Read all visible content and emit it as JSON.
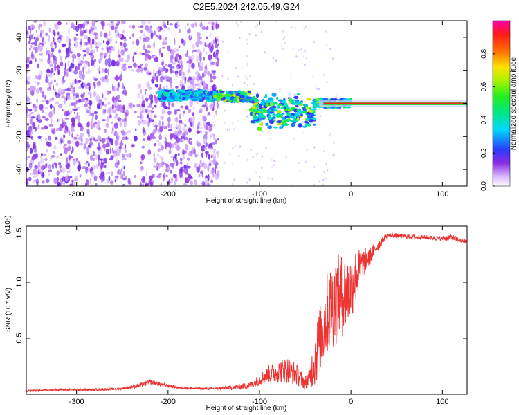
{
  "figure_title": "C2E5.2024.242.05.49.G24",
  "chart_data": [
    {
      "type": "heatmap",
      "title": "C2E5.2024.242.05.49.G24",
      "xlabel": "Height of straight line (km)",
      "ylabel": "Frequency (Hz)",
      "xlim": [
        -355,
        127
      ],
      "ylim": [
        -50,
        50
      ],
      "x_ticks": [
        -300,
        -200,
        -100,
        0,
        100
      ],
      "y_ticks": [
        -40,
        -20,
        0,
        20,
        40
      ],
      "colorbar": {
        "label": "Normalized spectral amplitude",
        "range": [
          0,
          1
        ],
        "ticks": [
          "0.0",
          "0.2",
          "0.4",
          "0.6",
          "0.8"
        ],
        "tick_values": [
          0.0,
          0.2,
          0.4,
          0.6,
          0.8
        ],
        "colormap": "rainbow (white-violet-blue-cyan-green-yellow-red-magenta)"
      },
      "regions": [
        {
          "x": [
            -355,
            -150
          ],
          "y": [
            -50,
            50
          ],
          "amplitude": 0.1,
          "description_level": "noise"
        },
        {
          "x": [
            -210,
            -40
          ],
          "y": [
            -15,
            12
          ],
          "amplitude": 0.3
        },
        {
          "x": [
            -40,
            10
          ],
          "y": [
            -4,
            4
          ],
          "amplitude": 0.6
        },
        {
          "x": [
            10,
            127
          ],
          "y": [
            -1,
            1
          ],
          "amplitude": 1.0
        }
      ],
      "grid": false
    },
    {
      "type": "line",
      "xlabel": "Height of straight line (km)",
      "ylabel": "SNR (10 * v/v)",
      "y_multiplier": "(x10⁴)",
      "xlim": [
        -355,
        127
      ],
      "ylim": [
        0,
        1.5
      ],
      "x_ticks": [
        -300,
        -200,
        -100,
        0,
        100
      ],
      "y_ticks": [
        "0.5",
        "1.0",
        "1.5"
      ],
      "y_tick_values": [
        0.5,
        1.0,
        1.5
      ],
      "color": "#ee3333",
      "series": [
        {
          "x": [
            -355,
            -320,
            -280,
            -250,
            -230,
            -220,
            -210,
            -190,
            -170,
            -150,
            -130,
            -110,
            -100,
            -90,
            -80,
            -70,
            -60,
            -50,
            -45,
            -40,
            -35,
            -30,
            -25,
            -20,
            -15,
            -10,
            -5,
            0,
            5,
            10,
            15,
            20,
            25,
            30,
            35,
            40,
            60,
            80,
            100,
            110,
            120,
            127
          ],
          "y": [
            0.03,
            0.04,
            0.04,
            0.05,
            0.08,
            0.11,
            0.09,
            0.06,
            0.05,
            0.05,
            0.06,
            0.08,
            0.13,
            0.18,
            0.2,
            0.22,
            0.18,
            0.1,
            0.15,
            0.3,
            0.45,
            0.6,
            0.75,
            0.8,
            0.85,
            0.88,
            0.9,
            0.95,
            1.05,
            1.12,
            1.18,
            1.22,
            1.28,
            1.33,
            1.38,
            1.42,
            1.41,
            1.4,
            1.39,
            1.4,
            1.37,
            1.36
          ],
          "noise_envelope": [
            0.01,
            0.01,
            0.01,
            0.01,
            0.02,
            0.02,
            0.02,
            0.01,
            0.01,
            0.01,
            0.02,
            0.03,
            0.05,
            0.08,
            0.1,
            0.12,
            0.1,
            0.06,
            0.1,
            0.25,
            0.3,
            0.35,
            0.38,
            0.4,
            0.4,
            0.38,
            0.35,
            0.3,
            0.25,
            0.18,
            0.12,
            0.08,
            0.06,
            0.05,
            0.03,
            0.02,
            0.02,
            0.02,
            0.02,
            0.03,
            0.02,
            0.02
          ]
        }
      ],
      "grid": false
    }
  ]
}
